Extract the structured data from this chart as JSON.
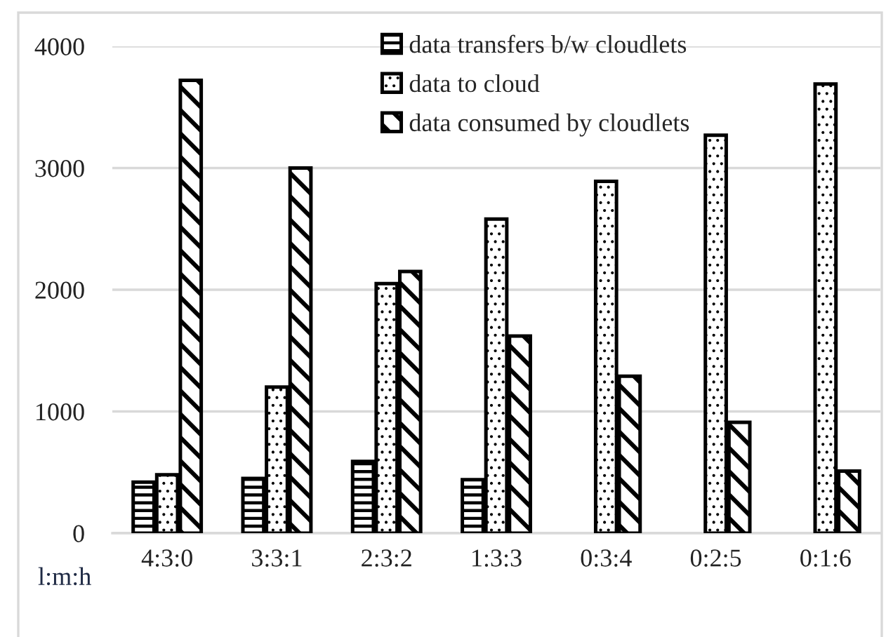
{
  "chart_data": {
    "type": "bar",
    "xlabel": "l:m:h",
    "categories": [
      "4:3:0",
      "3:3:1",
      "2:3:2",
      "1:3:3",
      "0:3:4",
      "0:2:5",
      "0:1:6"
    ],
    "series": [
      {
        "name": "data transfers b/w cloudlets",
        "color": "#000000",
        "values": [
          420,
          450,
          590,
          440,
          null,
          null,
          null
        ]
      },
      {
        "name": "data to cloud",
        "color": "#000000",
        "values": [
          480,
          1200,
          2050,
          2580,
          2890,
          3270,
          3690
        ]
      },
      {
        "name": "data consumed by cloudlets",
        "color": "#000000",
        "values": [
          3720,
          3000,
          2150,
          1620,
          1290,
          910,
          510
        ]
      }
    ],
    "ylim": [
      0,
      4000
    ],
    "yticks": [
      0,
      1000,
      2000,
      3000,
      4000
    ],
    "grid": "y",
    "legend": "top right"
  }
}
